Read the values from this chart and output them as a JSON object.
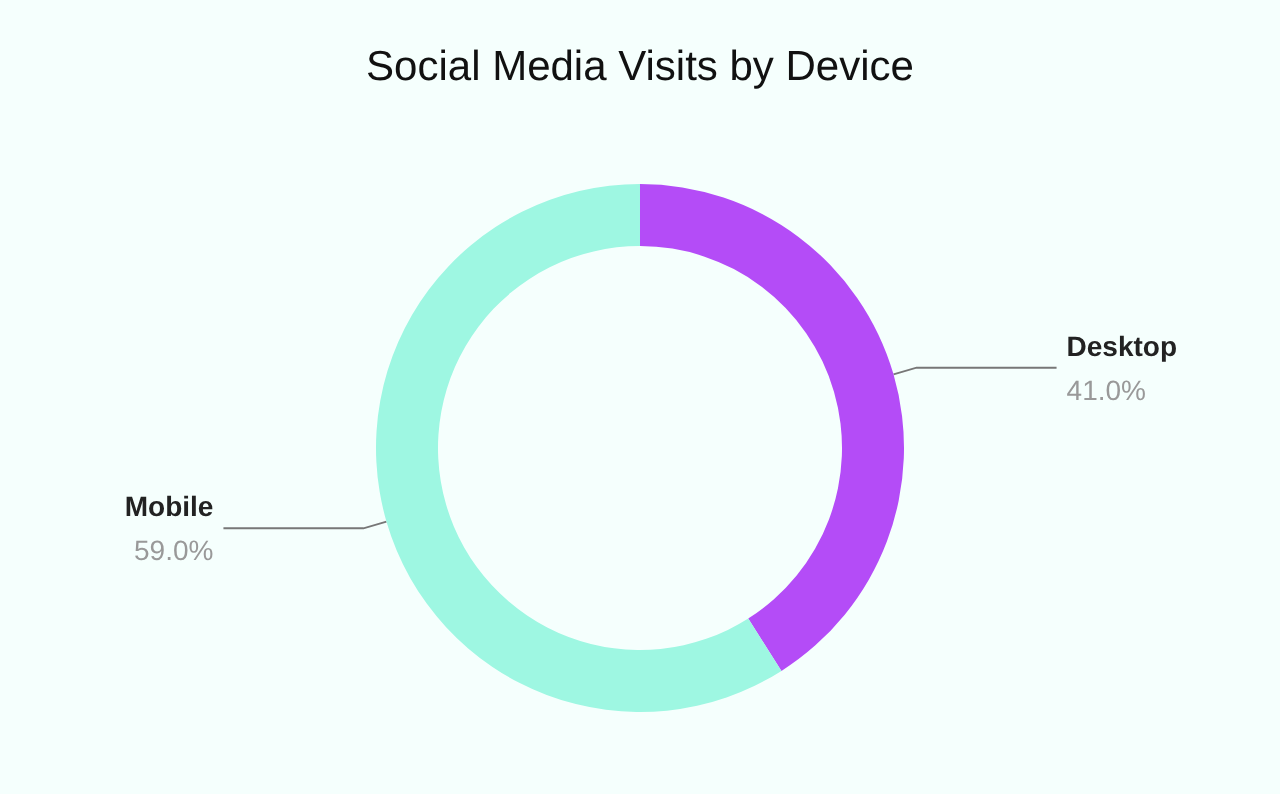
{
  "chart_data": {
    "type": "donut",
    "title": "Social Media Visits by Device",
    "categories": [
      "Desktop",
      "Mobile"
    ],
    "values": [
      41.0,
      59.0
    ],
    "colors": [
      "#b44cf7",
      "#9ef7e2"
    ],
    "value_labels": [
      "41.0%",
      "59.0%"
    ],
    "legend": false
  }
}
